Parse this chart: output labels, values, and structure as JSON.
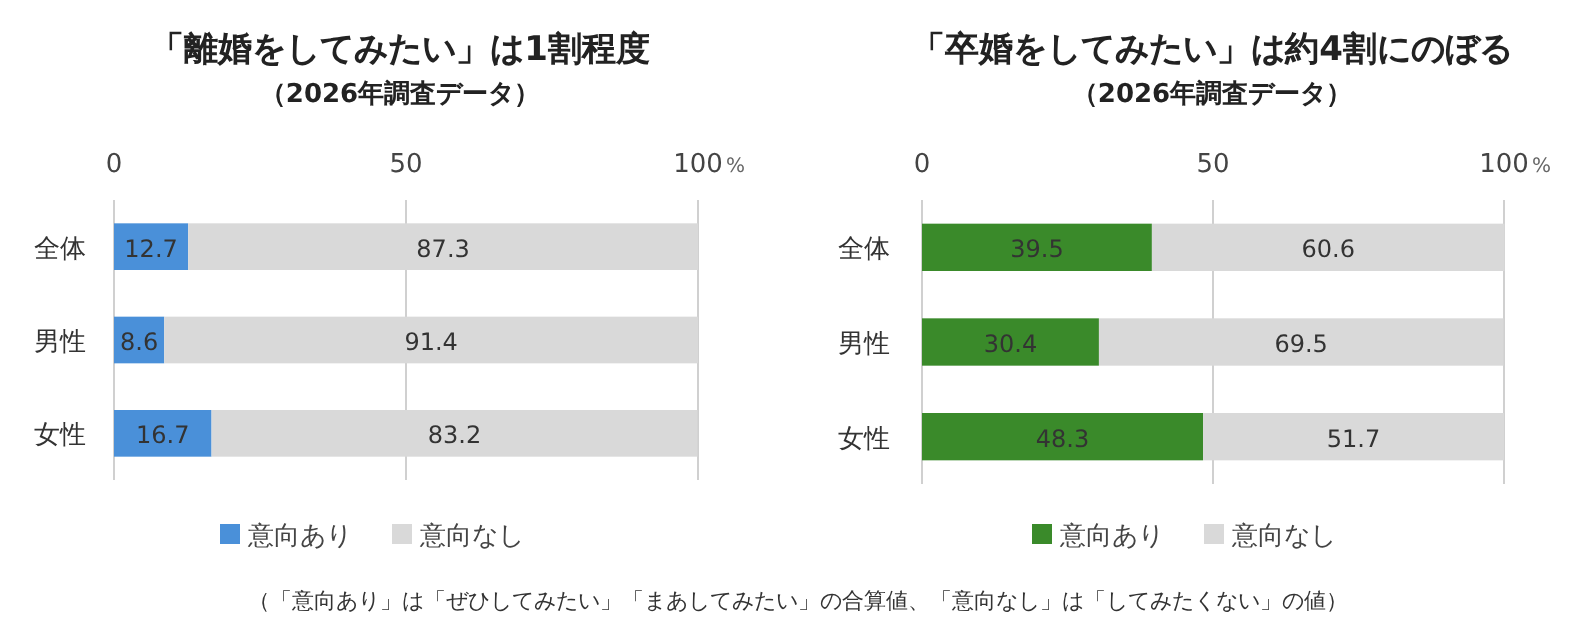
{
  "chart_data": [
    {
      "type": "bar",
      "orientation": "horizontal",
      "stacked": true,
      "title": "「離婚をしてみたい」は1割程度",
      "subtitle": "（2026年調査データ）",
      "xlabel": "%",
      "categories": [
        "全体",
        "男性",
        "女性"
      ],
      "series": [
        {
          "name": "意向あり",
          "color": "#4a90d9",
          "values": [
            12.7,
            8.6,
            16.7
          ]
        },
        {
          "name": "意向なし",
          "color": "#d9d9d9",
          "values": [
            87.3,
            91.4,
            83.2
          ]
        }
      ],
      "xlim": [
        0,
        100
      ],
      "xticks": [
        0,
        50,
        100
      ],
      "grid": "x",
      "legend": "bottom",
      "data_labels": true,
      "annotations": [
        "（「意向あり」は「ぜひしてみたい」「まあしてみたい」の合算値、「意向なし」は「してみたくない」の値）"
      ]
    },
    {
      "type": "bar",
      "orientation": "horizontal",
      "stacked": true,
      "title": "「卒婚をしてみたい」は約4割にのぼる",
      "subtitle": "（2026年調査データ）",
      "xlabel": "%",
      "categories": [
        "全体",
        "男性",
        "女性"
      ],
      "series": [
        {
          "name": "意向あり",
          "color": "#3a8a2a",
          "values": [
            39.5,
            30.4,
            48.3
          ]
        },
        {
          "name": "意向なし",
          "color": "#d9d9d9",
          "values": [
            60.6,
            69.5,
            51.7
          ]
        }
      ],
      "xlim": [
        0,
        100
      ],
      "xticks": [
        0,
        50,
        100
      ],
      "grid": "x",
      "legend": "bottom",
      "data_labels": true
    }
  ]
}
